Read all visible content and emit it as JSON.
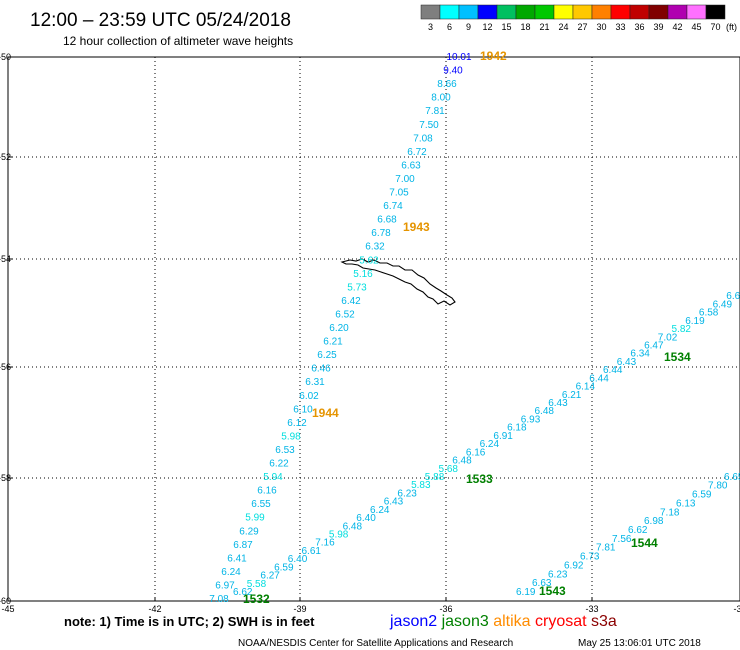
{
  "header": {
    "title": "12:00 – 23:59 UTC 05/24/2018",
    "subtitle": "12 hour collection of altimeter wave heights"
  },
  "legend": {
    "unit": "(ft)",
    "steps": [
      {
        "label": "3",
        "color": "#7f7f7f"
      },
      {
        "label": "6",
        "color": "#00ffff"
      },
      {
        "label": "9",
        "color": "#00c0ff"
      },
      {
        "label": "12",
        "color": "#0000ff"
      },
      {
        "label": "15",
        "color": "#00c060"
      },
      {
        "label": "18",
        "color": "#00a800"
      },
      {
        "label": "21",
        "color": "#00c800"
      },
      {
        "label": "24",
        "color": "#ffff00"
      },
      {
        "label": "27",
        "color": "#ffc800"
      },
      {
        "label": "30",
        "color": "#ff8000"
      },
      {
        "label": "33",
        "color": "#ff0000"
      },
      {
        "label": "36",
        "color": "#c00000"
      },
      {
        "label": "39",
        "color": "#800000"
      },
      {
        "label": "42",
        "color": "#b000b0"
      },
      {
        "label": "45",
        "color": "#ff70ff"
      },
      {
        "label": "70",
        "color": "#000000"
      }
    ]
  },
  "axes": {
    "lat_labels": [
      "-50",
      "-52",
      "-54",
      "-56",
      "-58",
      "-60"
    ],
    "lon_labels": [
      "-45",
      "-42",
      "-39",
      "-36",
      "-33",
      "-30"
    ]
  },
  "chart_data": {
    "type": "scatter",
    "title": "12:00 – 23:59 UTC 05/24/2018",
    "xlim": [
      -45,
      -30
    ],
    "ylim": [
      -60,
      -50
    ],
    "passes": [
      {
        "time": "1942",
        "satellite": "altika",
        "color": "#e59400",
        "values": [
          "10.01",
          "9.40",
          "8.66",
          "8.00",
          "7.81",
          "7.50",
          "7.08",
          "6.72",
          "6.63",
          "7.00",
          "7.05",
          "6.74",
          "6.68",
          "6.78",
          "6.32",
          "5.62",
          "5.16",
          "5.73",
          "6.42",
          "6.52",
          "6.20",
          "6.21",
          "6.25",
          "6.46",
          "6.31",
          "6.02",
          "6.10",
          "6.12",
          "5.98",
          "6.53",
          "6.22",
          "5.94",
          "6.16",
          "6.55",
          "5.99",
          "6.29",
          "6.87",
          "6.41",
          "6.24",
          "6.97",
          "7.08"
        ]
      },
      {
        "time": "1943",
        "satellite": "altika",
        "color": "#e59400",
        "values": []
      },
      {
        "time": "1944",
        "satellite": "altika",
        "color": "#e59400",
        "values": []
      },
      {
        "time": "1532",
        "satellite": "jason3",
        "color": "#008000",
        "values": [
          "6.62",
          "5.58",
          "6.27",
          "6.59",
          "6.40",
          "6.61",
          "7.16",
          "5.98",
          "6.48",
          "6.40",
          "6.24",
          "6.43",
          "6.23",
          "5.83",
          "5.88",
          "5.68",
          "6.48",
          "6.16",
          "6.24",
          "6.91",
          "6.18",
          "6.93",
          "6.48",
          "6.43",
          "6.21",
          "6.14",
          "6.44",
          "6.44",
          "6.43",
          "6.34",
          "6.47",
          "7.02",
          "5.82",
          "6.19",
          "6.58",
          "6.49",
          "6.69",
          "7.65"
        ]
      },
      {
        "time": "1533",
        "satellite": "jason3",
        "color": "#008000",
        "values": []
      },
      {
        "time": "1534",
        "satellite": "jason3",
        "color": "#008000",
        "values": []
      },
      {
        "time": "1543",
        "satellite": "jason3",
        "color": "#008000",
        "values": [
          "6.19",
          "6.63",
          "6.23",
          "6.92",
          "6.73",
          "7.81",
          "7.56",
          "6.62",
          "6.98",
          "7.18",
          "6.13",
          "6.59",
          "7.80",
          "6.65",
          "6.8"
        ]
      },
      {
        "time": "1544",
        "satellite": "jason3",
        "color": "#008000",
        "values": []
      }
    ]
  },
  "footer": {
    "note": "note: 1) Time is in UTC; 2) SWH is in feet",
    "satellites": [
      {
        "name": "jason2",
        "color": "#0000ff"
      },
      {
        "name": "jason3",
        "color": "#008000"
      },
      {
        "name": "altika",
        "color": "#ff8c00"
      },
      {
        "name": "cryosat",
        "color": "#ff0000"
      },
      {
        "name": "s3a",
        "color": "#8b0000"
      }
    ],
    "credit": "NOAA/NESDIS Center for Satellite Applications and Research",
    "timestamp": "May 25 13:06:01 UTC 2018"
  }
}
